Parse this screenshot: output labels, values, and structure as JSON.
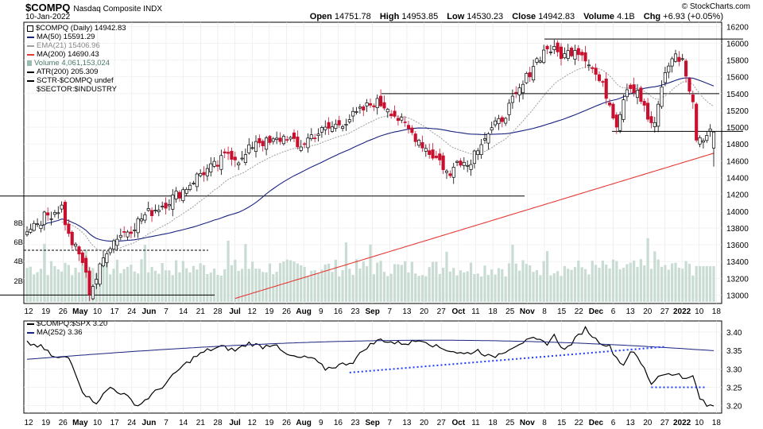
{
  "header": {
    "symbol": "$COMPQ",
    "index_name": "Nasdaq Composite INDX",
    "date": "10-Jan-2022",
    "open_label": "Open",
    "open": "14751.78",
    "high_label": "High",
    "high": "14953.85",
    "low_label": "Low",
    "low": "14530.23",
    "close_label": "Close",
    "close": "14942.83",
    "volume_label": "Volume",
    "volume": "4.1B",
    "chg_label": "Chg",
    "chg": "+6.93 (+0.05%)",
    "copyright": "© StockCharts.com"
  },
  "legend": {
    "main": "$COMPQ (Daily) 14942.83",
    "ma50": "MA(50) 15591.29",
    "ema21": "EMA(21) 15406.96",
    "ma200": "MA(200) 14690.43",
    "volume": "Volume 4,061,153,024",
    "atr": "ATR(200) 205.309",
    "sctr1": "SCTR-$COMPQ undef",
    "sctr2": "$SECTOR:$INDUSTRY",
    "ratio": "$COMPQ:$SPX 3.20",
    "ratio_ma": "MA(252) 3.36"
  },
  "colors": {
    "up_candle": "#000000",
    "down_candle": "#c8102e",
    "ma50": "#1a237e",
    "ema21": "#9e9e9e",
    "ma200": "#e53935",
    "volume": "#c8dcd3",
    "ratio_line": "#000000",
    "ratio_ma": "#1a237e",
    "trendline": "#1e3cff"
  },
  "chart_data": [
    {
      "type": "line",
      "title": "$COMPQ Nasdaq Composite INDX (Daily)",
      "y_axis": {
        "ylim": [
          12900,
          16250
        ],
        "ticks": [
          13000,
          13200,
          13400,
          13600,
          13800,
          14000,
          14200,
          14400,
          14600,
          14800,
          15000,
          15200,
          15400,
          15600,
          15800,
          16000,
          16200
        ],
        "position": "right"
      },
      "x_tick_labels": [
        "12",
        "19",
        "26",
        "May",
        "10",
        "17",
        "24",
        "Jun",
        "7",
        "14",
        "21",
        "28",
        "Jul",
        "12",
        "19",
        "26",
        "Aug",
        "9",
        "16",
        "23",
        "Sep",
        "7",
        "13",
        "20",
        "27",
        "Oct",
        "11",
        "18",
        "25",
        "Nov",
        "8",
        "15",
        "22",
        "Dec",
        "6",
        "13",
        "20",
        "27",
        "2022",
        "10",
        "18"
      ],
      "series": [
        {
          "name": "$COMPQ",
          "style": "candlestick",
          "close_path": [
            [
              0,
              13800
            ],
            [
              6,
              13950
            ],
            [
              10,
              14050
            ],
            [
              12,
              13700
            ],
            [
              16,
              13400
            ],
            [
              18,
              13050
            ],
            [
              20,
              13200
            ],
            [
              23,
              13550
            ],
            [
              26,
              13700
            ],
            [
              30,
              13800
            ],
            [
              34,
              13950
            ],
            [
              40,
              14100
            ],
            [
              45,
              14250
            ],
            [
              50,
              14450
            ],
            [
              55,
              14550
            ],
            [
              58,
              14700
            ],
            [
              62,
              14600
            ],
            [
              66,
              14850
            ],
            [
              70,
              14800
            ],
            [
              75,
              14900
            ],
            [
              78,
              14750
            ],
            [
              82,
              14900
            ],
            [
              88,
              15000
            ],
            [
              95,
              15150
            ],
            [
              100,
              15300
            ],
            [
              104,
              15250
            ],
            [
              108,
              15050
            ],
            [
              113,
              14850
            ],
            [
              116,
              14700
            ],
            [
              119,
              14600
            ],
            [
              122,
              14400
            ],
            [
              124,
              14650
            ],
            [
              127,
              14550
            ],
            [
              131,
              14850
            ],
            [
              136,
              15050
            ],
            [
              140,
              15300
            ],
            [
              143,
              15500
            ],
            [
              146,
              15750
            ],
            [
              150,
              15950
            ],
            [
              152,
              15900
            ],
            [
              155,
              15850
            ],
            [
              158,
              15950
            ],
            [
              161,
              15850
            ],
            [
              163,
              15700
            ],
            [
              167,
              15400
            ],
            [
              170,
              15050
            ],
            [
              173,
              15500
            ],
            [
              176,
              15450
            ],
            [
              179,
              15100
            ],
            [
              181,
              15000
            ],
            [
              183,
              15500
            ],
            [
              186,
              15850
            ],
            [
              189,
              15800
            ],
            [
              192,
              15250
            ],
            [
              193,
              14900
            ],
            [
              195,
              14850
            ],
            [
              196,
              14940
            ]
          ],
          "x_scale": "trading-day index"
        },
        {
          "name": "MA(50)",
          "value": 15591.29
        },
        {
          "name": "EMA(21)",
          "value": 15406.96
        },
        {
          "name": "MA(200)",
          "value": 14690.43
        }
      ],
      "horizontal_lines": [
        13000,
        13600,
        14180,
        14950,
        15400,
        16050
      ],
      "volume": {
        "y_labels": [
          "2B",
          "4B",
          "6B",
          "8B"
        ],
        "last": "4,061,153,024"
      }
    },
    {
      "type": "line",
      "title": "$COMPQ:$SPX",
      "y_axis": {
        "ylim": [
          3.18,
          3.43
        ],
        "ticks": [
          3.2,
          3.25,
          3.3,
          3.35,
          3.4
        ],
        "position": "right"
      },
      "x_tick_labels": [
        "12",
        "19",
        "26",
        "May",
        "10",
        "17",
        "24",
        "Jun",
        "7",
        "14",
        "21",
        "28",
        "Jul",
        "12",
        "19",
        "26",
        "Aug",
        "9",
        "16",
        "23",
        "Sep",
        "7",
        "13",
        "20",
        "27",
        "Oct",
        "11",
        "18",
        "25",
        "Nov",
        "8",
        "15",
        "22",
        "Dec",
        "6",
        "13",
        "20",
        "27",
        "2022",
        "10",
        "18"
      ],
      "series": [
        {
          "name": "$COMPQ:$SPX",
          "last": 3.2,
          "path": [
            [
              0,
              3.37
            ],
            [
              4,
              3.36
            ],
            [
              8,
              3.33
            ],
            [
              12,
              3.33
            ],
            [
              14,
              3.29
            ],
            [
              16,
              3.24
            ],
            [
              18,
              3.22
            ],
            [
              20,
              3.21
            ],
            [
              24,
              3.25
            ],
            [
              28,
              3.23
            ],
            [
              32,
              3.2
            ],
            [
              36,
              3.23
            ],
            [
              40,
              3.26
            ],
            [
              44,
              3.3
            ],
            [
              48,
              3.33
            ],
            [
              52,
              3.35
            ],
            [
              56,
              3.36
            ],
            [
              60,
              3.35
            ],
            [
              64,
              3.37
            ],
            [
              68,
              3.36
            ],
            [
              72,
              3.37
            ],
            [
              74,
              3.34
            ],
            [
              78,
              3.33
            ],
            [
              82,
              3.33
            ],
            [
              86,
              3.3
            ],
            [
              90,
              3.31
            ],
            [
              94,
              3.32
            ],
            [
              98,
              3.36
            ],
            [
              102,
              3.38
            ],
            [
              106,
              3.37
            ],
            [
              110,
              3.37
            ],
            [
              114,
              3.38
            ],
            [
              118,
              3.36
            ],
            [
              122,
              3.35
            ],
            [
              126,
              3.34
            ],
            [
              130,
              3.35
            ],
            [
              134,
              3.33
            ],
            [
              138,
              3.35
            ],
            [
              142,
              3.37
            ],
            [
              146,
              3.38
            ],
            [
              150,
              3.37
            ],
            [
              152,
              3.39
            ],
            [
              155,
              3.35
            ],
            [
              158,
              3.38
            ],
            [
              161,
              3.41
            ],
            [
              164,
              3.38
            ],
            [
              166,
              3.37
            ],
            [
              168,
              3.36
            ],
            [
              170,
              3.33
            ],
            [
              172,
              3.31
            ],
            [
              174,
              3.35
            ],
            [
              176,
              3.33
            ],
            [
              178,
              3.3
            ],
            [
              180,
              3.26
            ],
            [
              182,
              3.28
            ],
            [
              184,
              3.29
            ],
            [
              186,
              3.28
            ],
            [
              188,
              3.29
            ],
            [
              190,
              3.27
            ],
            [
              192,
              3.28
            ],
            [
              194,
              3.22
            ],
            [
              196,
              3.2
            ]
          ]
        },
        {
          "name": "MA(252)",
          "value": 3.36
        }
      ],
      "trendlines": [
        {
          "from": [
            93,
            3.29
          ],
          "to": [
            184,
            3.36
          ]
        },
        {
          "from": [
            180,
            3.25
          ],
          "to": [
            196,
            3.25
          ]
        }
      ]
    }
  ]
}
